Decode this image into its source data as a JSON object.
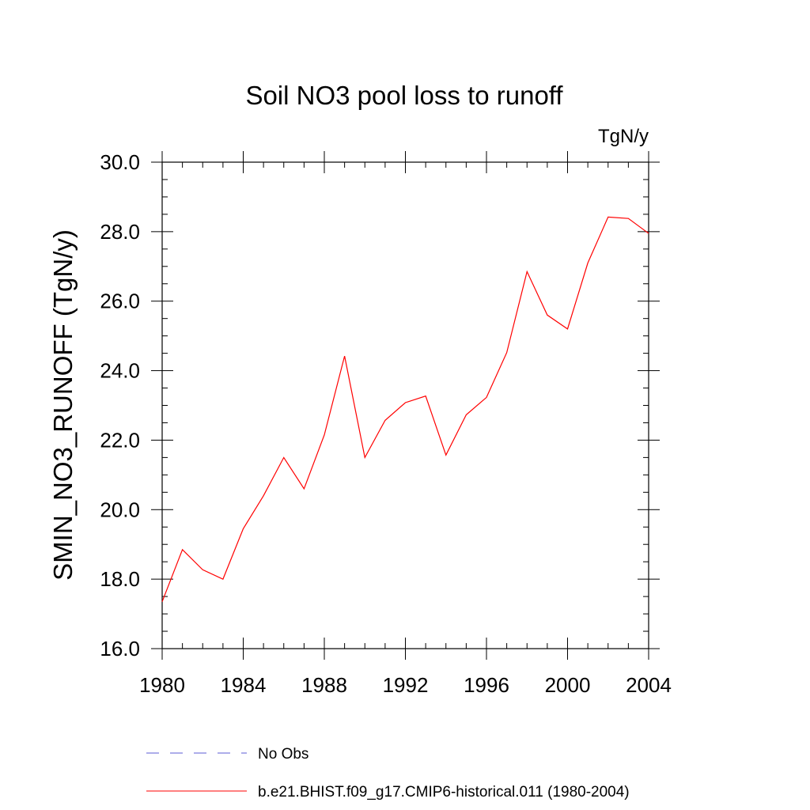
{
  "chart_data": {
    "type": "line",
    "title": "Soil NO3 pool loss to runoff",
    "units": "TgN/y",
    "ylabel": "SMIN_NO3_RUNOFF  (TgN/y)",
    "xlabel": "",
    "xlim": [
      1980,
      2004
    ],
    "ylim": [
      16.0,
      30.0
    ],
    "xticks": [
      1980,
      1984,
      1988,
      1992,
      1996,
      2000,
      2004
    ],
    "yticks": [
      "16.0",
      "18.0",
      "20.0",
      "22.0",
      "24.0",
      "26.0",
      "28.0",
      "30.0"
    ],
    "x": [
      1980,
      1981,
      1982,
      1983,
      1984,
      1985,
      1986,
      1987,
      1988,
      1989,
      1990,
      1991,
      1992,
      1993,
      1994,
      1995,
      1996,
      1997,
      1998,
      1999,
      2000,
      2001,
      2002,
      2003,
      2004
    ],
    "series": [
      {
        "name": "b.e21.BHIST.f09_g17.CMIP6-historical.011 (1980-2004)",
        "color": "#ff0000",
        "values": [
          17.35,
          18.85,
          18.27,
          18.0,
          19.45,
          20.4,
          21.5,
          20.6,
          22.15,
          24.42,
          21.5,
          22.57,
          23.08,
          23.27,
          21.57,
          22.73,
          23.23,
          24.52,
          26.85,
          25.6,
          25.2,
          27.1,
          28.42,
          28.38,
          27.95
        ]
      }
    ],
    "legend": [
      {
        "label": "No Obs",
        "color": "#5b5bd6",
        "style": "dashed"
      },
      {
        "label": "b.e21.BHIST.f09_g17.CMIP6-historical.011 (1980-2004)",
        "color": "#ff0000",
        "style": "solid"
      }
    ],
    "grid": false,
    "legend_position": "bottom"
  }
}
